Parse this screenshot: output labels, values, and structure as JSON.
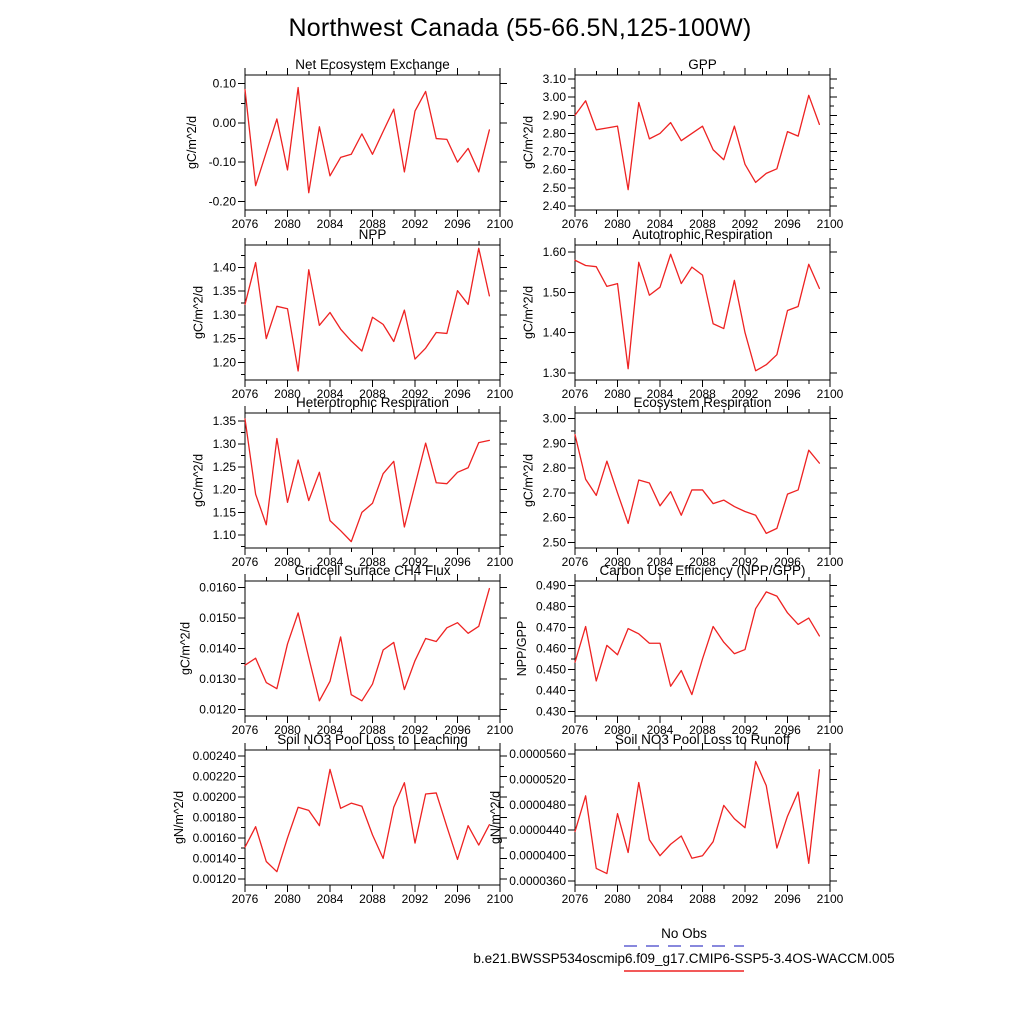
{
  "page": {
    "title": "Northwest Canada (55-66.5N,125-100W)"
  },
  "colors": {
    "series_red": "#ee2222",
    "no_obs_dash": "#8888dd",
    "axis_black": "#000000",
    "background": "#ffffff"
  },
  "legend": {
    "no_obs_label": "No Obs",
    "case_label": "b.e21.BWSSP534oscmip6.f09_g17.CMIP6-SSP5-3.4OS-WACCM.005"
  },
  "x_axis": {
    "xlim": [
      2076,
      2100
    ],
    "major_tick_step": 4,
    "minor_tick_step": 2,
    "tick_labels": [
      "2076",
      "2080",
      "2084",
      "2088",
      "2092",
      "2096",
      "2100"
    ],
    "years": [
      2076,
      2077,
      2078,
      2079,
      2080,
      2081,
      2082,
      2083,
      2084,
      2085,
      2086,
      2087,
      2088,
      2089,
      2090,
      2091,
      2092,
      2093,
      2094,
      2095,
      2096,
      2097,
      2098,
      2099
    ]
  },
  "chart_data": [
    {
      "type": "line",
      "title": "Net Ecosystem Exchange",
      "ylabel": "gC/m^2/d",
      "ylim": [
        -0.222,
        0.122
      ],
      "yticks": [
        -0.2,
        -0.1,
        0.0,
        0.1
      ],
      "ydecimals": 2,
      "values": [
        0.085,
        -0.16,
        -0.075,
        0.01,
        -0.12,
        0.09,
        -0.178,
        -0.01,
        -0.135,
        -0.088,
        -0.08,
        -0.028,
        -0.08,
        -0.022,
        0.035,
        -0.125,
        0.03,
        0.08,
        -0.04,
        -0.042,
        -0.1,
        -0.065,
        -0.125,
        -0.018
      ]
    },
    {
      "type": "line",
      "title": "GPP",
      "ylabel": "gC/m^2/d",
      "ylim": [
        2.378,
        3.122
      ],
      "yticks": [
        2.4,
        2.5,
        2.6,
        2.7,
        2.8,
        2.9,
        3.0,
        3.1
      ],
      "ydecimals": 2,
      "values": [
        2.9,
        2.98,
        2.82,
        2.83,
        2.84,
        2.49,
        2.97,
        2.77,
        2.8,
        2.86,
        2.76,
        2.8,
        2.84,
        2.71,
        2.655,
        2.84,
        2.63,
        2.53,
        2.58,
        2.605,
        2.81,
        2.785,
        3.01,
        2.85
      ]
    },
    {
      "type": "line",
      "title": "NPP",
      "ylabel": "gC/m^2/d",
      "ylim": [
        1.163,
        1.447
      ],
      "yticks": [
        1.2,
        1.25,
        1.3,
        1.35,
        1.4
      ],
      "ydecimals": 2,
      "values": [
        1.322,
        1.41,
        1.25,
        1.318,
        1.313,
        1.182,
        1.395,
        1.278,
        1.305,
        1.27,
        1.245,
        1.224,
        1.295,
        1.28,
        1.244,
        1.31,
        1.207,
        1.23,
        1.263,
        1.261,
        1.351,
        1.322,
        1.44,
        1.34
      ]
    },
    {
      "type": "line",
      "title": "Autotrophic Respiration",
      "ylabel": "gC/m^2/d",
      "ylim": [
        1.282,
        1.618
      ],
      "yticks": [
        1.3,
        1.4,
        1.5,
        1.6
      ],
      "ydecimals": 2,
      "values": [
        1.58,
        1.567,
        1.564,
        1.515,
        1.522,
        1.31,
        1.575,
        1.493,
        1.513,
        1.595,
        1.522,
        1.563,
        1.543,
        1.422,
        1.41,
        1.53,
        1.4,
        1.305,
        1.32,
        1.345,
        1.455,
        1.465,
        1.57,
        1.51
      ]
    },
    {
      "type": "line",
      "title": "Heterotrophic Respiration",
      "ylabel": "gC/m^2/d",
      "ylim": [
        1.072,
        1.368
      ],
      "yticks": [
        1.1,
        1.15,
        1.2,
        1.25,
        1.3,
        1.35
      ],
      "ydecimals": 2,
      "values": [
        1.355,
        1.19,
        1.123,
        1.312,
        1.172,
        1.265,
        1.176,
        1.238,
        1.132,
        1.11,
        1.086,
        1.15,
        1.17,
        1.235,
        1.262,
        1.118,
        1.21,
        1.302,
        1.215,
        1.213,
        1.238,
        1.248,
        1.303,
        1.308
      ]
    },
    {
      "type": "line",
      "title": "Ecosystem Respiration",
      "ylabel": "gC/m^2/d",
      "ylim": [
        2.478,
        3.022
      ],
      "yticks": [
        2.5,
        2.6,
        2.7,
        2.8,
        2.9,
        3.0
      ],
      "ydecimals": 2,
      "values": [
        2.935,
        2.755,
        2.69,
        2.828,
        2.7,
        2.577,
        2.752,
        2.74,
        2.648,
        2.705,
        2.61,
        2.712,
        2.712,
        2.657,
        2.671,
        2.645,
        2.625,
        2.61,
        2.537,
        2.557,
        2.695,
        2.712,
        2.872,
        2.82
      ]
    },
    {
      "type": "line",
      "title": "Gridcell Surface CH4 Flux",
      "ylabel": "gC/m^2/d",
      "ylim": [
        0.01178,
        0.01622
      ],
      "yticks": [
        0.012,
        0.013,
        0.014,
        0.015,
        0.016
      ],
      "ydecimals": 4,
      "values": [
        0.01345,
        0.01368,
        0.01288,
        0.01268,
        0.01415,
        0.01517,
        0.0137,
        0.01228,
        0.01292,
        0.01438,
        0.01248,
        0.01228,
        0.01283,
        0.01395,
        0.0142,
        0.01265,
        0.0136,
        0.01433,
        0.01423,
        0.01468,
        0.01485,
        0.0145,
        0.01473,
        0.01597
      ]
    },
    {
      "type": "line",
      "title": "Carbon Use Efficiency (NPP/GPP)",
      "ylabel": "NPP/GPP",
      "ylim": [
        0.4278,
        0.4922
      ],
      "yticks": [
        0.43,
        0.44,
        0.45,
        0.46,
        0.47,
        0.48,
        0.49
      ],
      "ydecimals": 3,
      "values": [
        0.4535,
        0.4705,
        0.4445,
        0.4615,
        0.457,
        0.4695,
        0.467,
        0.4625,
        0.4625,
        0.442,
        0.4495,
        0.438,
        0.455,
        0.4705,
        0.463,
        0.4575,
        0.4595,
        0.479,
        0.487,
        0.485,
        0.477,
        0.4715,
        0.4745,
        0.466
      ]
    },
    {
      "type": "line",
      "title": "Soil NO3 Pool Loss to Leaching",
      "ylabel": "gN/m^2/d",
      "ylim": [
        0.00114,
        0.00246
      ],
      "yticks": [
        0.0012,
        0.0014,
        0.0016,
        0.0018,
        0.002,
        0.0022,
        0.0024
      ],
      "ydecimals": 5,
      "values": [
        0.00151,
        0.00171,
        0.00137,
        0.00127,
        0.0016,
        0.0019,
        0.00187,
        0.00172,
        0.00227,
        0.00189,
        0.00194,
        0.00191,
        0.00163,
        0.0014,
        0.0019,
        0.00214,
        0.00155,
        0.00203,
        0.00204,
        0.00171,
        0.00139,
        0.00172,
        0.00153,
        0.00173
      ]
    },
    {
      "type": "line",
      "title": "Soil NO3 Pool Loss to Runoff",
      "ylabel": "gN/m^2/d",
      "ylim": [
        3.54e-05,
        5.66e-05
      ],
      "yticks": [
        3.6e-05,
        4e-05,
        4.4e-05,
        4.8e-05,
        5.2e-05,
        5.6e-05
      ],
      "ydecimals": 7,
      "values": [
        4.38e-05,
        4.94e-05,
        3.8e-05,
        3.72e-05,
        4.66e-05,
        4.05e-05,
        5.15e-05,
        4.25e-05,
        4e-05,
        4.18e-05,
        4.31e-05,
        3.96e-05,
        4e-05,
        4.22e-05,
        4.79e-05,
        4.58e-05,
        4.44e-05,
        5.48e-05,
        5.1e-05,
        4.12e-05,
        4.62e-05,
        5e-05,
        3.88e-05,
        5.35e-05
      ]
    }
  ]
}
